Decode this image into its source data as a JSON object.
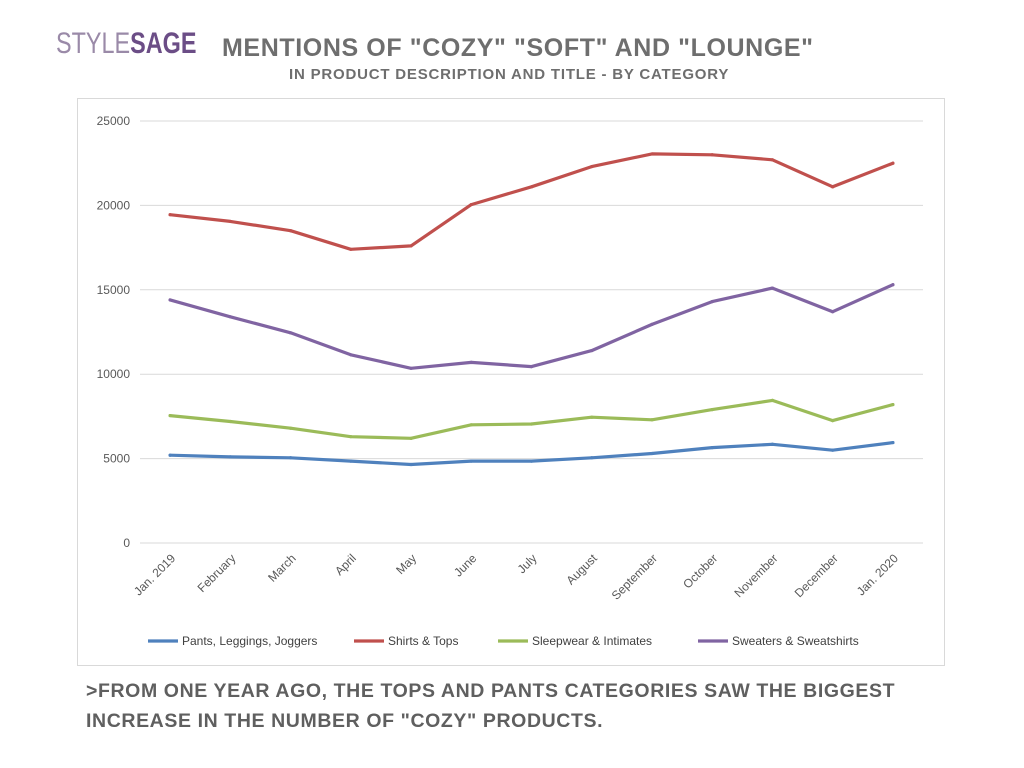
{
  "logo": {
    "part1": "STYLE",
    "part2": "SAGE"
  },
  "header": {
    "title": "MENTIONS OF \"COZY\" \"SOFT\" AND \"LOUNGE\"",
    "subtitle": "IN PRODUCT DESCRIPTION AND TITLE - BY CATEGORY"
  },
  "footnote": ">FROM ONE YEAR AGO, THE TOPS AND PANTS CATEGORIES SAW THE BIGGEST INCREASE IN THE NUMBER OF \"COZY\" PRODUCTS.",
  "chart_data": {
    "type": "line",
    "title": "",
    "xlabel": "",
    "ylabel": "",
    "ylim": [
      0,
      25000
    ],
    "yticks": [
      0,
      5000,
      10000,
      15000,
      20000,
      25000
    ],
    "grid": true,
    "legend_position": "bottom",
    "categories": [
      "Jan. 2019",
      "February",
      "March",
      "April",
      "May",
      "June",
      "July",
      "August",
      "September",
      "October",
      "November",
      "December",
      "Jan. 2020"
    ],
    "series": [
      {
        "name": "Pants, Leggings, Joggers",
        "color": "#4f81bd",
        "values": [
          5200,
          5100,
          5050,
          4850,
          4650,
          4850,
          4850,
          5050,
          5300,
          5650,
          5850,
          5500,
          5950
        ]
      },
      {
        "name": "Shirts & Tops",
        "color": "#c0504d",
        "values": [
          19450,
          19050,
          18500,
          17400,
          17600,
          20050,
          21100,
          22300,
          23050,
          23000,
          22700,
          21100,
          22500
        ]
      },
      {
        "name": "Sleepwear & Intimates",
        "color": "#9bbb59",
        "values": [
          7550,
          7200,
          6800,
          6300,
          6200,
          7000,
          7050,
          7450,
          7300,
          7900,
          8450,
          7250,
          8200
        ]
      },
      {
        "name": "Sweaters & Sweatshirts",
        "color": "#8064a2",
        "values": [
          14400,
          13400,
          12450,
          11150,
          10350,
          10700,
          10450,
          11400,
          12950,
          14300,
          15100,
          13700,
          15300
        ]
      }
    ]
  }
}
